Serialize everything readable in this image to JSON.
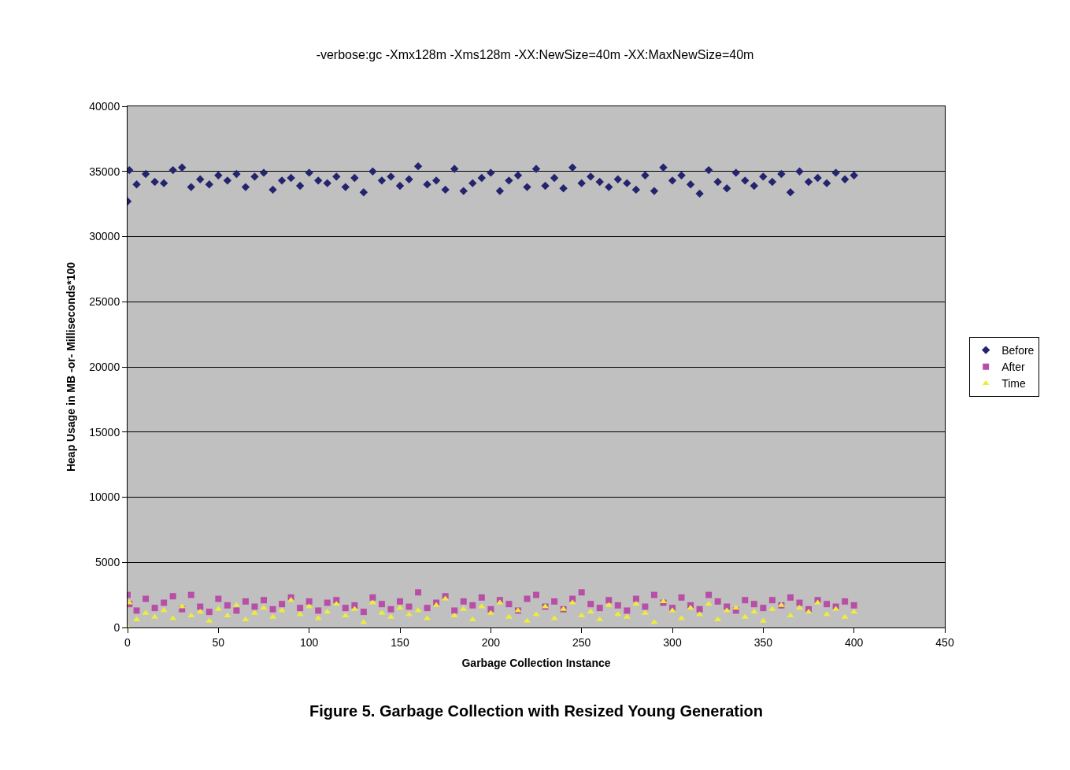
{
  "chart_data": {
    "type": "scatter",
    "title": "-verbose:gc -Xmx128m -Xms128m -XX:NewSize=40m -XX:MaxNewSize=40m",
    "xlabel": "Garbage Collection Instance",
    "ylabel": "Heap Usage in MB -or- Milliseconds*100",
    "annotations": [
      "Figure 5. Garbage Collection with Resized Young Generation"
    ],
    "x": [
      0,
      1,
      5,
      10,
      15,
      20,
      25,
      30,
      35,
      40,
      45,
      50,
      55,
      60,
      65,
      70,
      75,
      80,
      85,
      90,
      95,
      100,
      105,
      110,
      115,
      120,
      125,
      130,
      135,
      140,
      145,
      150,
      155,
      160,
      165,
      170,
      175,
      180,
      185,
      190,
      195,
      200,
      205,
      210,
      215,
      220,
      225,
      230,
      235,
      240,
      245,
      250,
      255,
      260,
      265,
      270,
      275,
      280,
      285,
      290,
      295,
      300,
      305,
      310,
      315,
      320,
      325,
      330,
      335,
      340,
      345,
      350,
      355,
      360,
      365,
      370,
      375,
      380,
      385,
      390,
      395,
      400
    ],
    "series": [
      {
        "name": "Before",
        "color": "#24246e",
        "marker": "diamond",
        "values": [
          32700,
          35100,
          34000,
          34800,
          34200,
          34100,
          35100,
          35300,
          33800,
          34400,
          34000,
          34700,
          34300,
          34800,
          33800,
          34600,
          34900,
          33600,
          34300,
          34500,
          33900,
          34900,
          34300,
          34100,
          34600,
          33800,
          34500,
          33400,
          35000,
          34300,
          34600,
          33900,
          34400,
          35400,
          34000,
          34300,
          33600,
          35200,
          33500,
          34100,
          34500,
          34900,
          33500,
          34300,
          34700,
          33800,
          35200,
          33900,
          34500,
          33700,
          35300,
          34100,
          34600,
          34200,
          33800,
          34400,
          34100,
          33600,
          34700,
          33500,
          35300,
          34300,
          34700,
          34000,
          33300,
          35100,
          34200,
          33700,
          34900,
          34300,
          33900,
          34600,
          34200,
          34800,
          33400,
          35000,
          34200,
          34500,
          34100,
          34900,
          34400,
          34700
        ]
      },
      {
        "name": "After",
        "color": "#b84ea6",
        "marker": "square",
        "values": [
          2500,
          1800,
          1300,
          2200,
          1500,
          1900,
          2400,
          1400,
          2500,
          1600,
          1200,
          2200,
          1700,
          1300,
          2000,
          1600,
          2100,
          1400,
          1800,
          2300,
          1500,
          2000,
          1300,
          1900,
          2100,
          1500,
          1700,
          1200,
          2300,
          1800,
          1400,
          2000,
          1600,
          2700,
          1500,
          1900,
          2400,
          1300,
          2000,
          1700,
          2300,
          1400,
          2100,
          1800,
          1300,
          2200,
          2500,
          1600,
          2000,
          1400,
          2200,
          2700,
          1800,
          1500,
          2100,
          1700,
          1300,
          2200,
          1600,
          2500,
          1900,
          1500,
          2300,
          1700,
          1400,
          2500,
          2000,
          1600,
          1300,
          2100,
          1800,
          1500,
          2100,
          1700,
          2300,
          1900,
          1400,
          2100,
          1800,
          1600,
          2000,
          1700
        ]
      },
      {
        "name": "Time",
        "color": "#eded3a",
        "marker": "triangle",
        "values": [
          0,
          1900,
          600,
          1100,
          800,
          1300,
          700,
          1600,
          900,
          1200,
          500,
          1400,
          900,
          1700,
          600,
          1100,
          1500,
          800,
          1300,
          2100,
          1000,
          1600,
          700,
          1200,
          1800,
          900,
          1400,
          400,
          1900,
          1100,
          800,
          1500,
          1000,
          1300,
          700,
          1700,
          2200,
          900,
          1400,
          600,
          1600,
          1100,
          1900,
          800,
          1300,
          500,
          1000,
          1600,
          700,
          1400,
          1900,
          900,
          1200,
          600,
          1700,
          1000,
          800,
          1800,
          1100,
          400,
          2000,
          1300,
          700,
          1500,
          1000,
          1800,
          600,
          1300,
          1500,
          800,
          1200,
          500,
          1400,
          1700,
          900,
          1500,
          1200,
          1900,
          1000,
          1400,
          800,
          1200
        ]
      }
    ],
    "xlim": [
      0,
      450
    ],
    "xticks": [
      0,
      50,
      100,
      150,
      200,
      250,
      300,
      350,
      400,
      450
    ],
    "ylim": [
      0,
      40000
    ],
    "yticks": [
      0,
      5000,
      10000,
      15000,
      20000,
      25000,
      30000,
      35000,
      40000
    ],
    "grid": "y",
    "legend": "right"
  }
}
